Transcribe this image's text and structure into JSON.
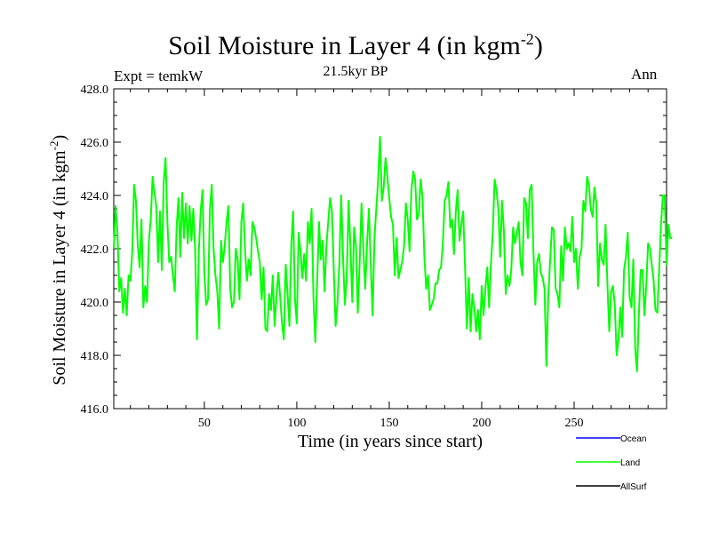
{
  "chart_data": {
    "type": "line",
    "title": "Soil Moisture in Layer 4 (in kgm",
    "title_sup": "-2",
    "title_close": ")",
    "subtitle": "21.5kyr BP",
    "top_left_label": "Expt = temkW",
    "top_right_label": "Ann",
    "xlabel": "Time (in years since start)",
    "ylabel": "Soil Moisture in Layer 4 (in kgm",
    "ylabel_sup": "-2",
    "ylabel_close": ")",
    "xlim": [
      1,
      300
    ],
    "ylim": [
      416,
      428
    ],
    "xticks": [
      50,
      100,
      150,
      200,
      250
    ],
    "yticks": [
      "416.0",
      "418.0",
      "420.0",
      "422.0",
      "424.0",
      "426.0",
      "428.0"
    ],
    "legend": [
      {
        "name": "Ocean",
        "color": "#0000ff"
      },
      {
        "name": "Land",
        "color": "#00ff00"
      },
      {
        "name": "AllSurf",
        "color": "#000000"
      }
    ],
    "series": [
      {
        "name": "Land",
        "color": "#00ff00",
        "x_start": 1,
        "values": [
          422.0,
          423.6,
          422.6,
          420.4,
          420.9,
          419.6,
          420.5,
          419.5,
          421.0,
          420.8,
          421.9,
          424.4,
          423.8,
          422.1,
          421.3,
          423.1,
          419.8,
          420.6,
          420.0,
          422.3,
          423.1,
          424.7,
          424.1,
          423.6,
          421.5,
          423.4,
          421.2,
          424.5,
          425.4,
          423.0,
          421.5,
          421.7,
          421.0,
          420.4,
          422.8,
          423.9,
          421.7,
          424.1,
          422.4,
          423.7,
          422.2,
          423.6,
          422.3,
          423.5,
          422.0,
          418.6,
          421.9,
          423.4,
          424.2,
          421.1,
          419.9,
          420.1,
          423.5,
          424.4,
          422.0,
          421.0,
          420.4,
          419.0,
          422.3,
          421.5,
          422.1,
          423.0,
          423.6,
          420.5,
          419.8,
          420.0,
          422.0,
          421.6,
          420.1,
          423.0,
          423.7,
          422.0,
          420.8,
          421.6,
          421.0,
          423.0,
          422.8,
          422.4,
          421.9,
          421.5,
          420.1,
          421.3,
          419.0,
          418.9,
          420.3,
          419.7,
          421.0,
          419.1,
          420.2,
          421.1,
          420.2,
          419.2,
          418.6,
          421.4,
          420.3,
          419.1,
          422.1,
          423.4,
          420.1,
          419.2,
          422.6,
          421.9,
          420.9,
          421.8,
          420.8,
          423.0,
          422.2,
          423.5,
          420.2,
          418.5,
          420.7,
          423.0,
          421.6,
          422.3,
          420.4,
          422.1,
          423.0,
          423.9,
          423.4,
          421.2,
          419.1,
          420.0,
          421.4,
          424.0,
          421.7,
          419.9,
          420.9,
          423.8,
          422.1,
          420.0,
          422.8,
          422.1,
          419.6,
          421.5,
          423.7,
          422.0,
          420.5,
          422.2,
          423.5,
          421.4,
          419.5,
          422.4,
          423.5,
          424.6,
          426.2,
          423.8,
          424.3,
          425.4,
          424.7,
          423.9,
          423.2,
          422.9,
          421.0,
          422.4,
          420.9,
          421.2,
          421.5,
          422.1,
          423.7,
          423.1,
          421.9,
          424.2,
          424.9,
          424.6,
          423.1,
          423.3,
          424.6,
          423.9,
          421.7,
          420.5,
          421.0,
          419.7,
          419.9,
          420.1,
          420.7,
          420.7,
          421.2,
          421.3,
          422.2,
          423.8,
          424.0,
          424.5,
          422.8,
          423.1,
          421.8,
          423.4,
          424.2,
          422.3,
          422.9,
          423.4,
          421.3,
          419.0,
          420.9,
          418.9,
          420.3,
          419.8,
          418.9,
          419.7,
          418.6,
          420.6,
          419.5,
          420.5,
          421.3,
          419.8,
          421.4,
          422.6,
          424.6,
          424.2,
          423.5,
          421.7,
          423.8,
          422.7,
          420.3,
          421.0,
          420.6,
          421.2,
          422.8,
          422.2,
          422.6,
          423.0,
          421.5,
          421.0,
          423.9,
          423.7,
          422.4,
          424.2,
          424.4,
          421.9,
          419.9,
          421.5,
          421.8,
          421.1,
          420.9,
          420.5,
          417.6,
          420.2,
          421.5,
          422.8,
          422.7,
          420.5,
          420.3,
          419.8,
          422.1,
          420.8,
          422.8,
          422.0,
          422.2,
          421.9,
          423.2,
          421.5,
          422.0,
          420.5,
          421.7,
          422.0,
          423.8,
          423.4,
          424.7,
          424.4,
          423.5,
          423.2,
          424.3,
          423.7,
          420.6,
          422.2,
          421.6,
          421.4,
          422.9,
          420.7,
          418.9,
          420.4,
          420.6,
          419.9,
          418.0,
          418.6,
          419.8,
          418.7,
          421.2,
          421.7,
          422.6,
          420.2,
          419.8,
          421.6,
          418.3,
          417.4,
          419.5,
          421.2,
          421.2,
          419.5,
          420.6,
          422.2,
          422.0,
          421.4,
          420.8,
          419.7,
          419.6,
          421.2,
          422.9,
          424.0,
          424.0,
          421.4,
          422.9,
          422.4,
          422.4
        ]
      }
    ]
  }
}
